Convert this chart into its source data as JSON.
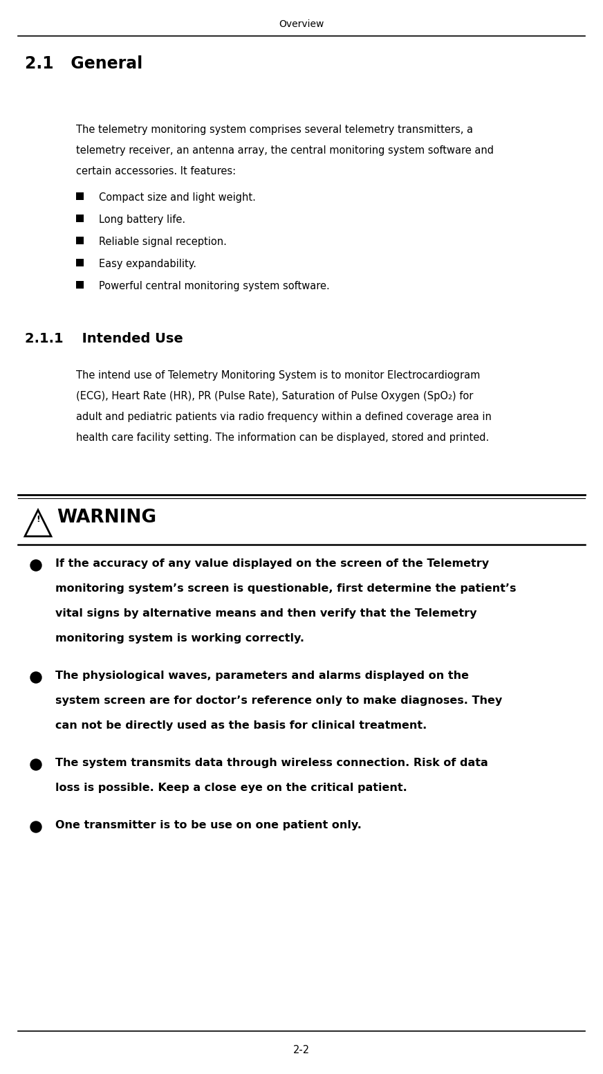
{
  "page_title": "Overview",
  "page_number": "2-2",
  "section_21_title": "2.1   General",
  "section_211_title": "2.1.1    Intended Use",
  "intro_lines": [
    "The telemetry monitoring system comprises several telemetry transmitters, a",
    "telemetry receiver, an antenna array, the central monitoring system software and",
    "certain accessories. It features:"
  ],
  "bullet_items": [
    "Compact size and light weight.",
    "Long battery life.",
    "Reliable signal reception.",
    "Easy expandability.",
    "Powerful central monitoring system software."
  ],
  "intended_lines": [
    "The intend use of Telemetry Monitoring System is to monitor Electrocardiogram",
    "(ECG), Heart Rate (HR), PR (Pulse Rate), Saturation of Pulse Oxygen (SpO₂) for",
    "adult and pediatric patients via radio frequency within a defined coverage area in",
    "health care facility setting. The information can be displayed, stored and printed."
  ],
  "warning_title": "WARNING",
  "warning_bullet_lines": [
    [
      "If the accuracy of any value displayed on the screen of the Telemetry",
      "monitoring system’s screen is questionable, first determine the patient’s",
      "vital signs by alternative means and then verify that the Telemetry",
      "monitoring system is working correctly."
    ],
    [
      "The physiological waves, parameters and alarms displayed on the",
      "system screen are for doctor’s reference only to make diagnoses. They",
      "can not be directly used as the basis for clinical treatment."
    ],
    [
      "The system transmits data through wireless connection. Risk of data",
      "loss is possible. Keep a close eye on the critical patient."
    ],
    [
      "One transmitter is to be use on one patient only."
    ]
  ],
  "bg_color": "#ffffff",
  "text_color": "#000000",
  "header_fontsize": 10,
  "body_fontsize": 10.5,
  "heading1_fontsize": 17,
  "heading2_fontsize": 14,
  "warning_title_fontsize": 19,
  "warning_body_fontsize": 11.5
}
